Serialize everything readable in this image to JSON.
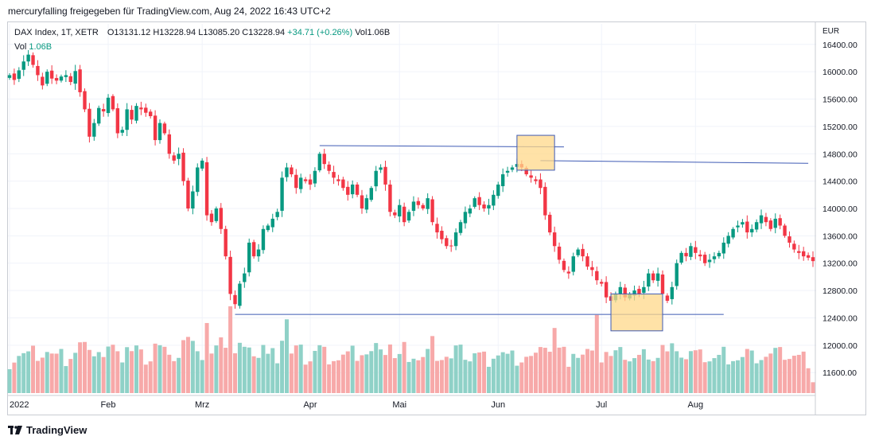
{
  "header": {
    "attribution": "mercuryfalling freigegeben für TradingView.com, Aug 24, 2022 16:43 UTC+2"
  },
  "legend": {
    "symbol": "DAX Index, 1T, XETR",
    "open": "O13131.12",
    "high": "H13228.94",
    "low": "L13085.20",
    "close": "C13228.94",
    "change": "+34.71 (+0.26%)",
    "vol": "Vol1.06B",
    "vol_label": "Vol",
    "vol_value": "1.06B"
  },
  "currency": "EUR",
  "footer": {
    "brand": "TradingView"
  },
  "colors": {
    "up": "#089981",
    "down": "#f23645",
    "vol_up": "#8fd1c7",
    "vol_down": "#f7a9a9",
    "line": "#3f5bb5",
    "box_fill": "#ffd88a",
    "box_stroke": "#3f5bb5"
  },
  "chart_data": {
    "type": "candlestick",
    "title": "DAX Index, 1T, XETR",
    "ylim": [
      11300,
      16700
    ],
    "y_ticks": [
      11600,
      12000,
      12400,
      12800,
      13200,
      13600,
      14000,
      14400,
      14800,
      15200,
      15600,
      16000,
      16400
    ],
    "x_tick_labels": [
      {
        "label": "2022",
        "index": 0
      },
      {
        "label": "Feb",
        "index": 21
      },
      {
        "label": "Mrz",
        "index": 41
      },
      {
        "label": "Apr",
        "index": 64
      },
      {
        "label": "Mai",
        "index": 83
      },
      {
        "label": "Jun",
        "index": 104
      },
      {
        "label": "Jul",
        "index": 126
      },
      {
        "label": "Aug",
        "index": 146
      }
    ],
    "closes": [
      15950,
      15880,
      16020,
      16150,
      16250,
      16100,
      15950,
      15800,
      16000,
      15900,
      15870,
      15930,
      15950,
      15850,
      16010,
      15700,
      15450,
      15050,
      15250,
      15470,
      15420,
      15620,
      15450,
      15100,
      15150,
      15450,
      15300,
      15500,
      15450,
      15400,
      15350,
      15000,
      15250,
      15100,
      14800,
      14700,
      14800,
      14400,
      14000,
      14250,
      14600,
      14700,
      13900,
      13800,
      14000,
      13700,
      13300,
      12750,
      12600,
      12900,
      13050,
      13500,
      13300,
      13400,
      13700,
      13750,
      13850,
      13950,
      14450,
      14600,
      14500,
      14300,
      14450,
      14400,
      14350,
      14550,
      14800,
      14650,
      14550,
      14450,
      14400,
      14300,
      14200,
      14350,
      14200,
      14000,
      14150,
      14300,
      14550,
      14600,
      14350,
      13950,
      13900,
      14050,
      13800,
      13950,
      14100,
      14050,
      14000,
      14150,
      13800,
      13650,
      13550,
      13450,
      13450,
      13650,
      13800,
      13950,
      14000,
      14150,
      14050,
      14000,
      14050,
      14200,
      14350,
      14500,
      14550,
      14600,
      14650,
      14600,
      14500,
      14450,
      14400,
      14300,
      13900,
      13650,
      13450,
      13250,
      13100,
      13050,
      13300,
      13400,
      13300,
      13150,
      13100,
      12950,
      12900,
      12700,
      12650,
      12750,
      12850,
      12700,
      12750,
      12800,
      12750,
      12850,
      13050,
      12950,
      13050,
      12750,
      12650,
      12850,
      13200,
      13350,
      13300,
      13450,
      13350,
      13300,
      13200,
      13250,
      13300,
      13350,
      13500,
      13600,
      13700,
      13750,
      13800,
      13650,
      13700,
      13800,
      13900,
      13800,
      13700,
      13850,
      13750,
      13600,
      13500,
      13400,
      13350,
      13300,
      13280,
      13230
    ],
    "volume_unit": "B",
    "volume_range": [
      0,
      2.2
    ]
  }
}
